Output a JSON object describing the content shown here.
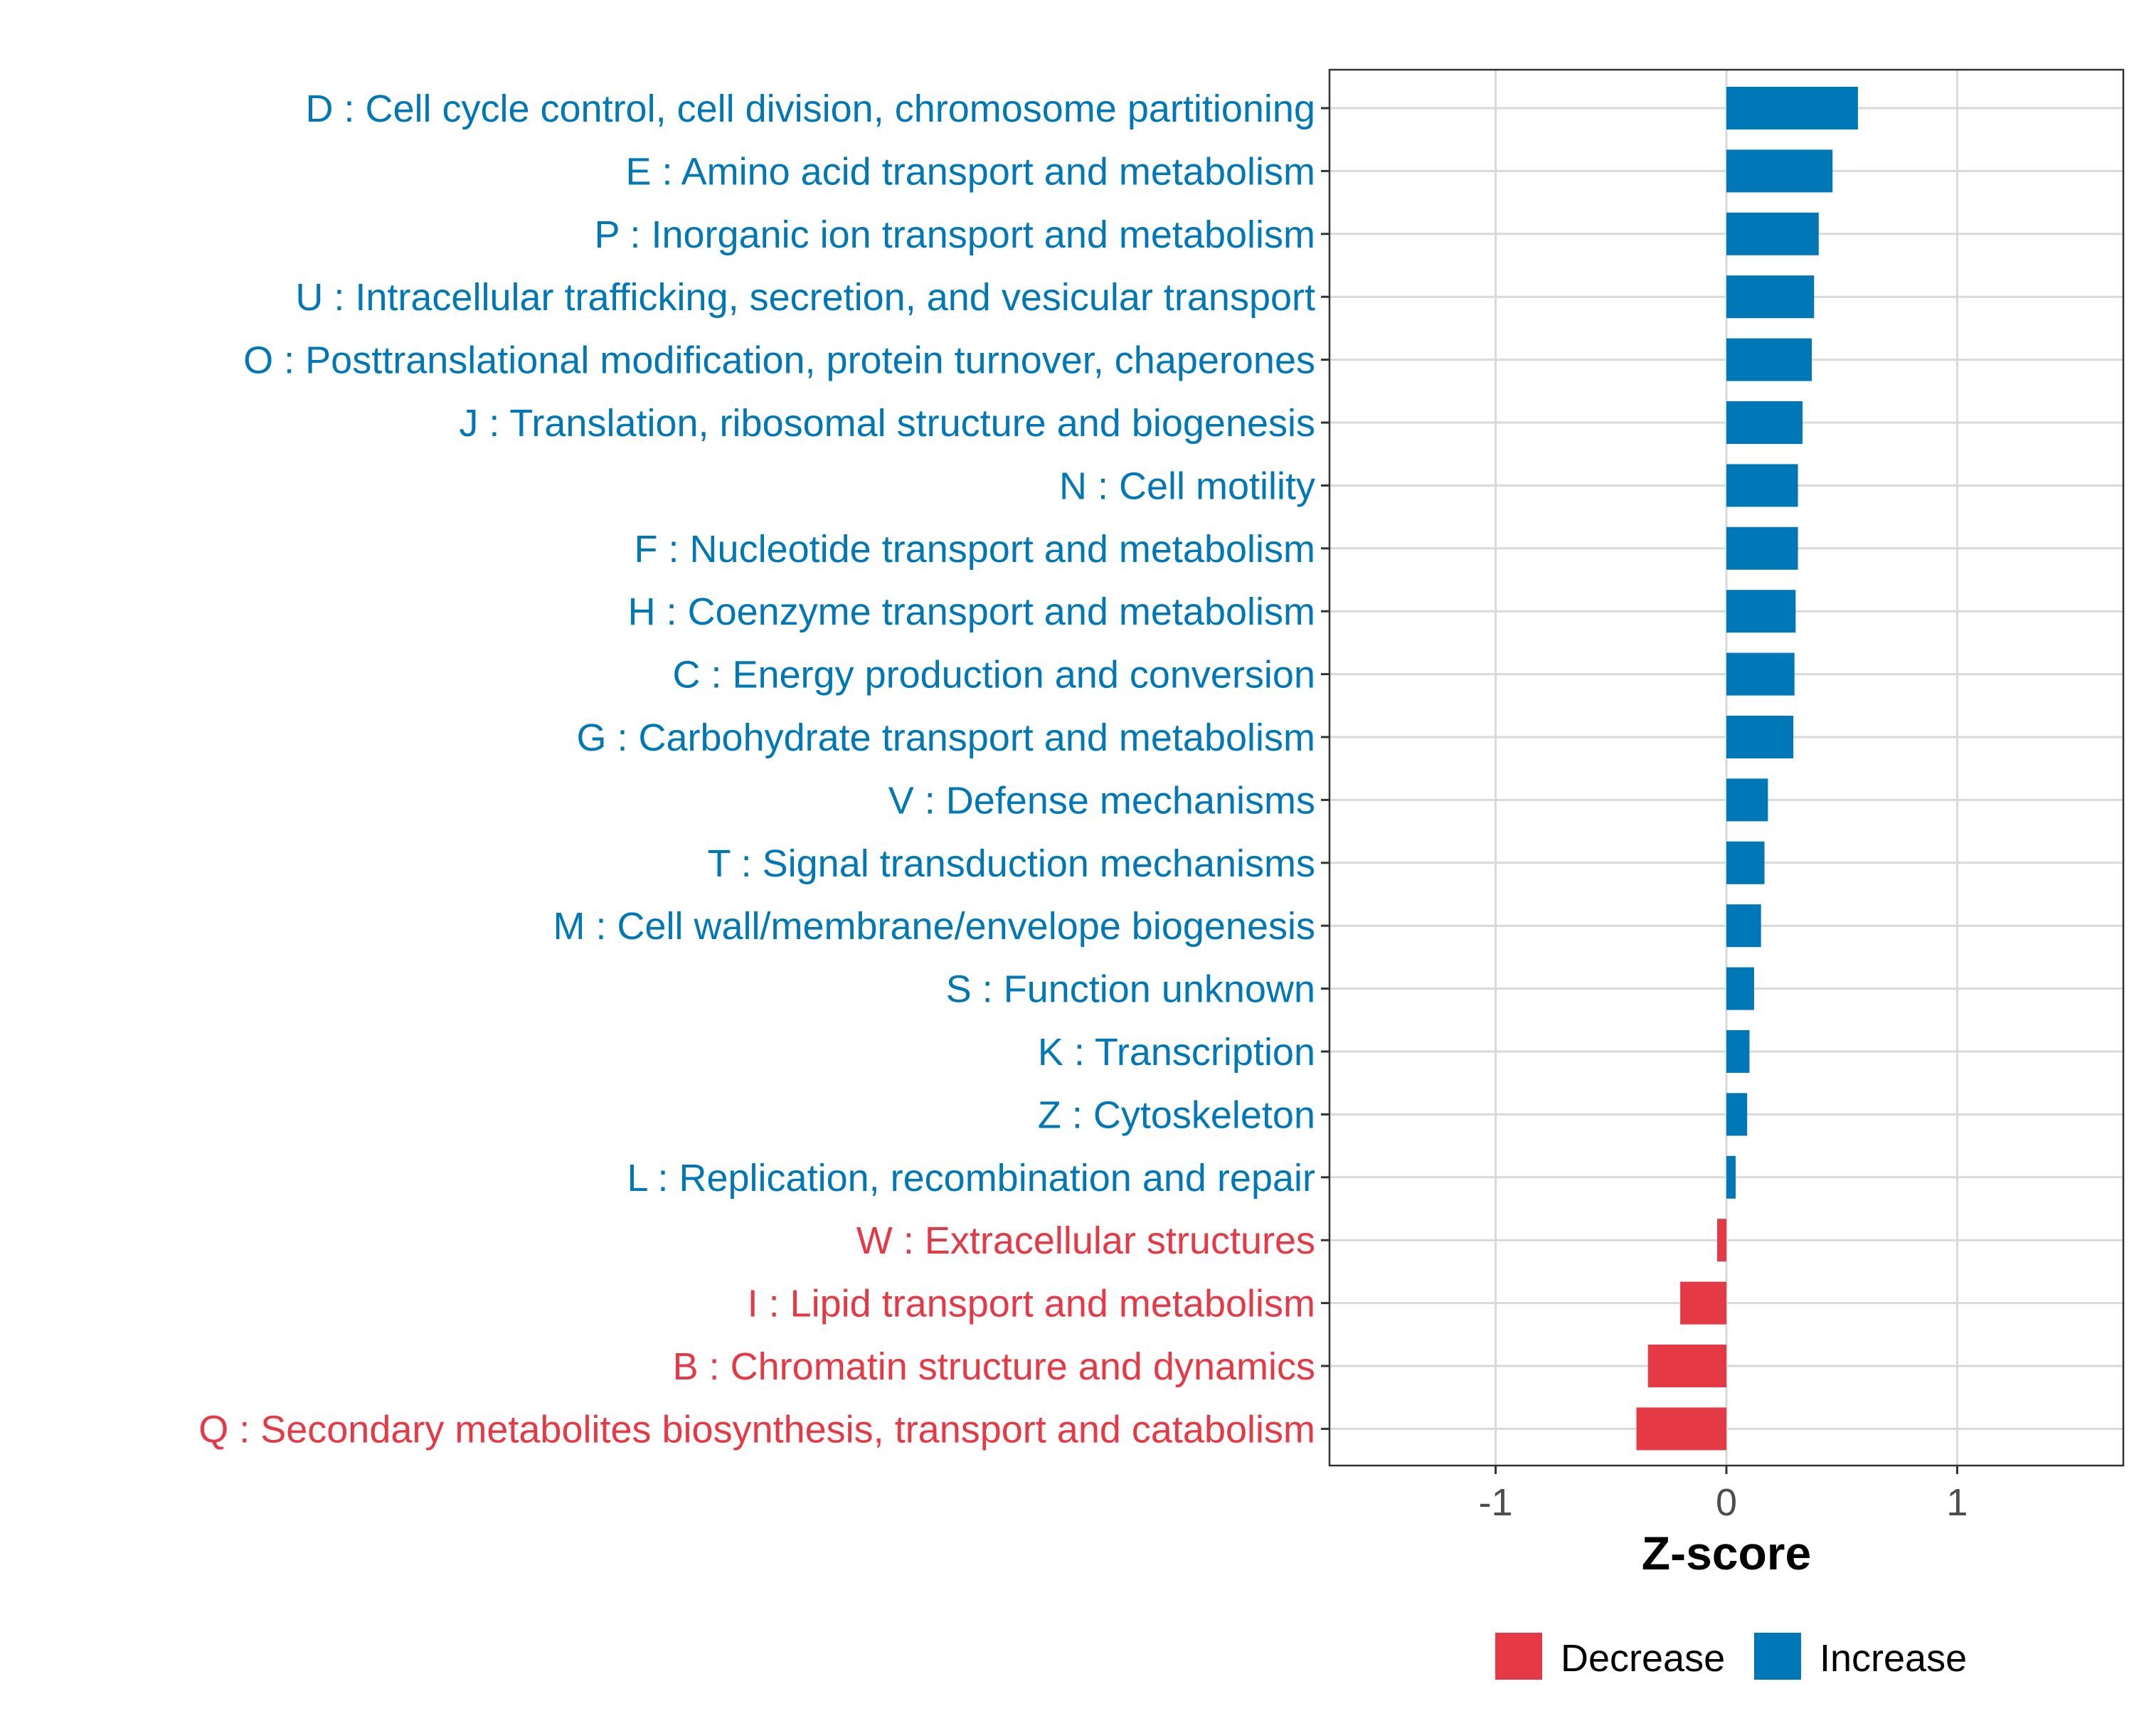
{
  "chart_data": {
    "type": "bar",
    "orientation": "horizontal",
    "title": "",
    "xlabel": "Z-score",
    "ylabel": "",
    "xlim": [
      -1.72,
      1.72
    ],
    "xticks": [
      -1,
      0,
      1
    ],
    "xtick_labels": [
      "-1",
      "0",
      "1"
    ],
    "grid": true,
    "legend": {
      "position": "bottom",
      "entries": [
        {
          "name": "Decrease",
          "color": "#E63946"
        },
        {
          "name": "Increase",
          "color": "#0077B6"
        }
      ]
    },
    "categories": [
      "D : Cell cycle control, cell division, chromosome partitioning",
      "E : Amino acid transport and metabolism",
      "P : Inorganic ion transport and metabolism",
      "U : Intracellular trafficking, secretion, and vesicular transport",
      "O : Posttranslational modification, protein turnover, chaperones",
      "J : Translation, ribosomal structure and biogenesis",
      "N : Cell motility",
      "F : Nucleotide transport and metabolism",
      "H : Coenzyme transport and metabolism",
      "C : Energy production and conversion",
      "G : Carbohydrate transport and metabolism",
      "V : Defense mechanisms",
      "T : Signal transduction mechanisms",
      "M : Cell wall/membrane/envelope biogenesis",
      "S : Function unknown",
      "K : Transcription",
      "Z : Cytoskeleton",
      "L : Replication, recombination and repair",
      "W : Extracellular structures",
      "I : Lipid transport and metabolism",
      "B : Chromatin structure and dynamics",
      "Q : Secondary metabolites biosynthesis, transport and catabolism"
    ],
    "values": [
      0.57,
      0.46,
      0.4,
      0.38,
      0.37,
      0.33,
      0.31,
      0.31,
      0.3,
      0.295,
      0.29,
      0.18,
      0.165,
      0.15,
      0.12,
      0.1,
      0.09,
      0.04,
      -0.04,
      -0.2,
      -0.34,
      -0.39
    ],
    "groups": [
      "Increase",
      "Increase",
      "Increase",
      "Increase",
      "Increase",
      "Increase",
      "Increase",
      "Increase",
      "Increase",
      "Increase",
      "Increase",
      "Increase",
      "Increase",
      "Increase",
      "Increase",
      "Increase",
      "Increase",
      "Increase",
      "Decrease",
      "Decrease",
      "Decrease",
      "Decrease"
    ]
  }
}
